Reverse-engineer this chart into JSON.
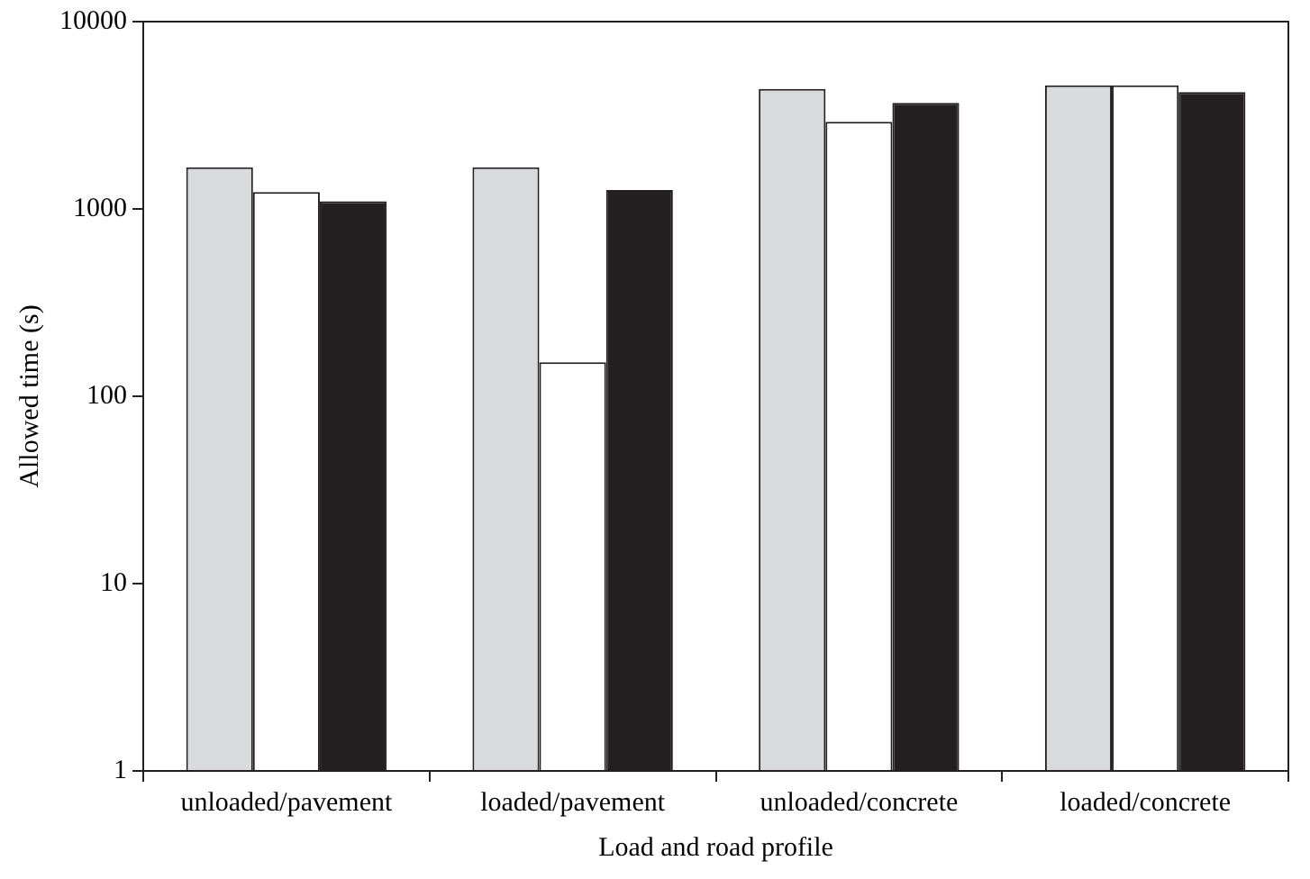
{
  "chart_data": {
    "type": "bar",
    "xlabel": "Load and road profile",
    "ylabel": "Allowed time (s)",
    "categories": [
      "unloaded/pavement",
      "loaded/pavement",
      "unloaded/concrete",
      "loaded/concrete"
    ],
    "series": [
      {
        "color": "#d9dadc",
        "values": [
          1670,
          1670,
          4370,
          4570
        ]
      },
      {
        "color": "#ffffff",
        "values": [
          1230,
          152,
          2920,
          4570
        ]
      },
      {
        "color": "#231f20",
        "values": [
          1100,
          1260,
          3680,
          4200
        ]
      }
    ],
    "log": "y",
    "ylim": [
      1,
      10000
    ],
    "yticks": [
      1,
      10,
      100,
      1000,
      10000
    ],
    "grid": false,
    "legend": false
  }
}
